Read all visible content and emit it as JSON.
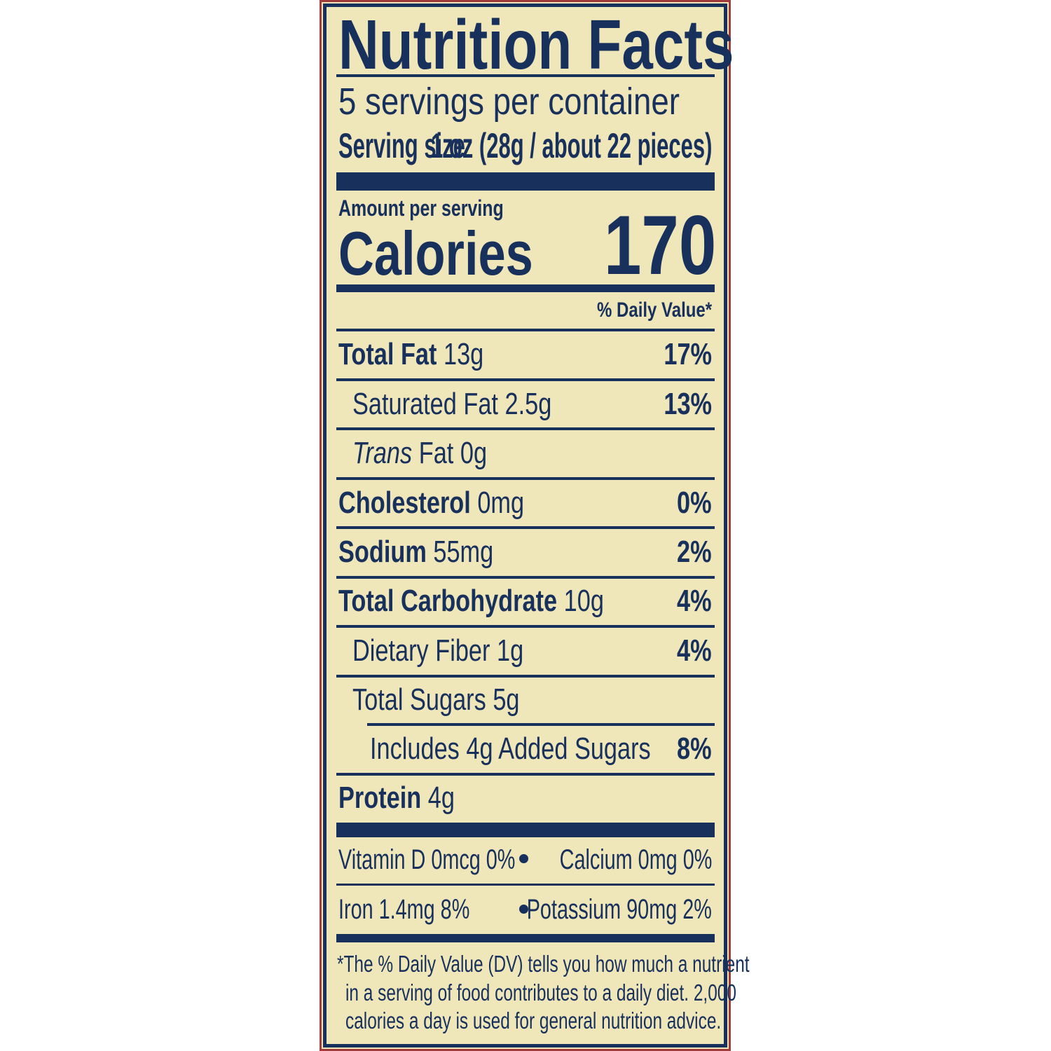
{
  "colors": {
    "ink": "#17305c",
    "background": "#efe6b9",
    "border": "#a23b3b"
  },
  "title": "Nutrition Facts",
  "servings_per_container": "5 servings per container",
  "serving_size": {
    "label": "Serving size",
    "value": "1 oz (28g / about 22 pieces)"
  },
  "amount_per_serving": "Amount per serving",
  "calories": {
    "label": "Calories",
    "value": "170"
  },
  "daily_value_header": "% Daily Value*",
  "nutrients": [
    {
      "name": "Total Fat",
      "amount": "13g",
      "dv": "17%"
    },
    {
      "name": "Saturated Fat",
      "amount": "2.5g",
      "dv": "13%"
    },
    {
      "name": "Trans",
      "name_suffix": "Fat",
      "amount": "0g"
    },
    {
      "name": "Cholesterol",
      "amount": "0mg",
      "dv": "0%"
    },
    {
      "name": "Sodium",
      "amount": "55mg",
      "dv": "2%"
    },
    {
      "name": "Total Carbohydrate",
      "amount": "10g",
      "dv": "4%"
    },
    {
      "name": "Dietary Fiber",
      "amount": "1g",
      "dv": "4%"
    },
    {
      "name": "Total Sugars",
      "amount": "5g"
    },
    {
      "name": "Includes 4g Added Sugars",
      "dv": "8%"
    },
    {
      "name": "Protein",
      "amount": "4g"
    }
  ],
  "micronutrients": [
    "Vitamin D 0mcg 0%",
    "Calcium 0mg 0%",
    "Iron 1.4mg 8%",
    "Potassium 90mg 2%"
  ],
  "footnote": [
    "*The % Daily Value (DV) tells you how much a nutrient",
    "in a serving of food contributes to a daily diet. 2,000",
    "calories a day is used for general nutrition advice."
  ]
}
